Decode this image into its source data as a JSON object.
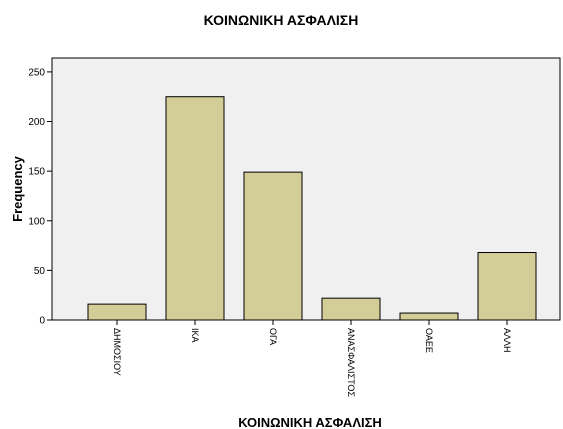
{
  "chart_data": {
    "type": "bar",
    "title": "ΚΟΙΝΩΝΙΚΗ ΑΣΦΑΛΙΣΗ",
    "x_label": "ΚΟΙΝΩΝΙΚΗ ΑΣΦΑΛΙΣΗ",
    "y_label": "Frequency",
    "categories": [
      "ΔΗΜΟΣΙΟΥ",
      "ΙΚΑ",
      "ΟΓΑ",
      "ΑΝΑΣΦΑΛΙΣΤΟΣ",
      "ΟΑΕΕ",
      "ΑΛΛΗ"
    ],
    "values": [
      16,
      225,
      149,
      22,
      7,
      68
    ],
    "color": "#d3ce97",
    "ylim": [
      0,
      264
    ],
    "yticks": [
      0,
      50,
      100,
      150,
      200,
      250
    ]
  }
}
